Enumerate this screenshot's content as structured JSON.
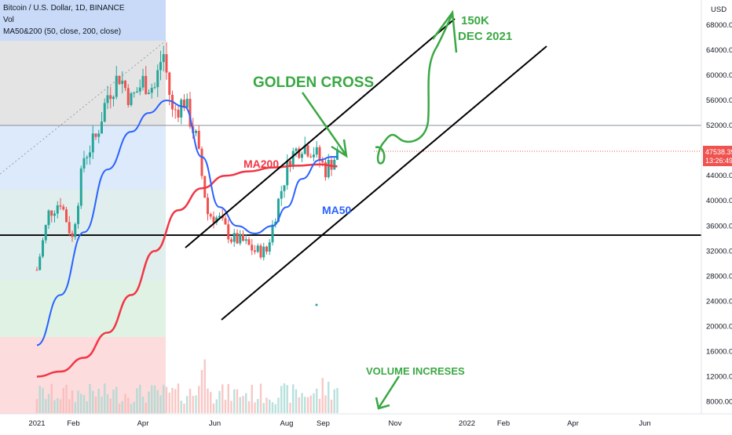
{
  "header": {
    "symbol_line": "Bitcoin / U.S. Dollar, 1D, BINANCE",
    "volume_label": "Vol",
    "ma_label": "MA50&200 (50, close, 200, close)"
  },
  "price_badge": {
    "price": "47538.39",
    "countdown": "13:26:49",
    "color": "#ef5350"
  },
  "annotations": {
    "golden_cross": "GOLDEN CROSS",
    "target": "150K",
    "target_date": "DEC 2021",
    "ma200": "MA200",
    "ma50": "MA50",
    "volume": "VOLUME INCRESES"
  },
  "colors": {
    "ma50": "#2962ff",
    "ma200": "#f23645",
    "bull": "#26a69a",
    "bear": "#ef5350",
    "annotation": "#3aa843"
  },
  "chart_data": {
    "type": "candlestick",
    "ylabel": "USD",
    "yticks": [
      8000,
      12000,
      16000,
      20000,
      24000,
      28000,
      32000,
      36000,
      40000,
      44000,
      48000,
      52000,
      56000,
      60000,
      64000,
      68000
    ],
    "ytick_labels": [
      "8000.00",
      "12000.00",
      "16000.00",
      "20000.00",
      "24000.00",
      "28000.00",
      "32000.00",
      "36000.00",
      "40000.00",
      "44000.00",
      "48000.00",
      "52000.00",
      "56000.00",
      "60000.00",
      "64000.00",
      "68000.00"
    ],
    "ylim": [
      6000,
      70000
    ],
    "xticks": [
      "2021",
      "Feb",
      "Apr",
      "Jun",
      "Aug",
      "Sep",
      "Nov",
      "2022",
      "Feb",
      "Apr",
      "Jun"
    ],
    "xtick_days": [
      0,
      31,
      90,
      151,
      212,
      243,
      304,
      365,
      396,
      455,
      516
    ],
    "horizontal_lines": [
      52000,
      34500
    ],
    "price_path": {
      "day": [
        0,
        10,
        20,
        30,
        40,
        50,
        60,
        70,
        80,
        90,
        100,
        107,
        115,
        125,
        135,
        145,
        155,
        165,
        175,
        185,
        195,
        205,
        215,
        225,
        235,
        245,
        255
      ],
      "price": [
        29000,
        38000,
        40000,
        34000,
        47000,
        50000,
        57000,
        60000,
        56000,
        59000,
        58000,
        64000,
        54000,
        56000,
        50000,
        38000,
        37000,
        34000,
        33500,
        32000,
        32000,
        40000,
        47000,
        49000,
        48000,
        45000,
        47500
      ]
    },
    "series": [
      {
        "name": "MA50",
        "day": [
          0,
          20,
          40,
          60,
          80,
          95,
          110,
          125,
          140,
          155,
          170,
          185,
          200,
          212,
          225,
          240,
          250,
          255
        ],
        "values": [
          17000,
          25000,
          35000,
          45000,
          51000,
          54000,
          56000,
          55000,
          47000,
          39000,
          36000,
          34800,
          36000,
          39000,
          43500,
          46500,
          47000,
          47000
        ]
      },
      {
        "name": "MA200",
        "day": [
          0,
          20,
          40,
          60,
          80,
          100,
          120,
          140,
          160,
          180,
          200,
          220,
          240,
          255
        ],
        "values": [
          12000,
          12800,
          15000,
          19000,
          25000,
          32000,
          38500,
          42000,
          44000,
          44700,
          45300,
          45600,
          45800,
          45500
        ]
      }
    ],
    "volume_note": "volume bars rise in Sep 2021"
  }
}
